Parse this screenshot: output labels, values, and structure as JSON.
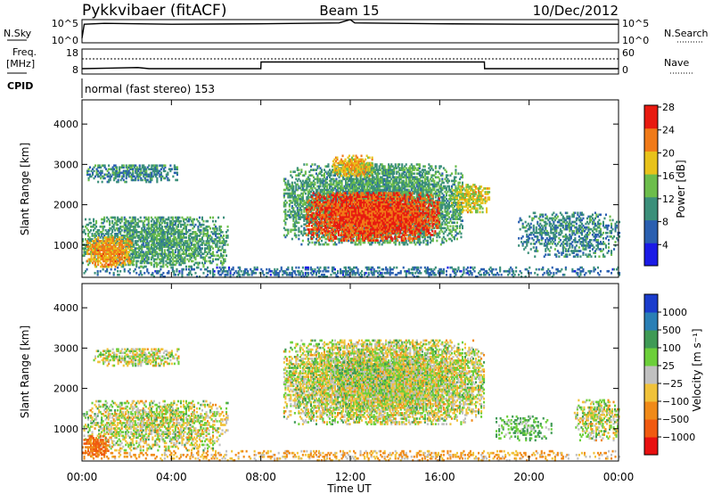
{
  "header": {
    "station": "Pykkvibaer (fitACF)",
    "beam": "Beam 15",
    "date": "10/Dec/2012"
  },
  "nsky_panel": {
    "label": "N.Sky",
    "right_label": "N.Search",
    "left_ticks": [
      "10^5",
      "10^0"
    ],
    "right_ticks": [
      "10^5",
      "10^0"
    ]
  },
  "freq_panel": {
    "label_line1": "Freq.",
    "label_line2": "[MHz]",
    "right_label": "Nave",
    "left_ticks": [
      "18",
      "8"
    ],
    "right_ticks": [
      "60",
      "0"
    ]
  },
  "cpid": {
    "label": "CPID",
    "text": "normal (fast stereo) 153"
  },
  "x_axis": {
    "label": "Time UT",
    "ticks": [
      "00:00",
      "04:00",
      "08:00",
      "12:00",
      "16:00",
      "20:00",
      "00:00"
    ]
  },
  "power_panel": {
    "ylabel": "Slant Range [km]",
    "yticks": [
      "1000",
      "2000",
      "3000",
      "4000"
    ],
    "colorbar_label": "Power [dB]",
    "colorbar_ticks": [
      "4",
      "8",
      "12",
      "16",
      "20",
      "24",
      "28"
    ],
    "colors": [
      "#1a1ae6",
      "#2a5fb0",
      "#3b8f7a",
      "#6cbd4b",
      "#e8c21a",
      "#f07a18",
      "#e81a10"
    ]
  },
  "velocity_panel": {
    "ylabel": "Slant Range [km]",
    "yticks": [
      "1000",
      "2000",
      "3000",
      "4000"
    ],
    "colorbar_label": "Velocity [m s⁻¹]",
    "colorbar_ticks": [
      "1000",
      "500",
      "100",
      "25",
      "−25",
      "−100",
      "−500",
      "−1000"
    ],
    "colors": [
      "#1a3ccc",
      "#2a7fb5",
      "#3f9a55",
      "#6ccf3a",
      "#c0c0c0",
      "#f0c23a",
      "#f08a18",
      "#f05a10",
      "#e81010"
    ]
  },
  "chart_data": [
    {
      "type": "line",
      "title": "N.Sky / N.Search",
      "x_unit": "hours UT",
      "series": [
        {
          "x": [
            0,
            0.1,
            1,
            4,
            8,
            11.5,
            12,
            12.2,
            16,
            20,
            24
          ],
          "y": [
            1.0,
            4.0,
            4.2,
            4.0,
            4.1,
            4.3,
            5.0,
            4.3,
            4.1,
            4.0,
            4.0
          ]
        }
      ]
    },
    {
      "type": "line",
      "title": "Freq. / Nave",
      "x_unit": "hours UT",
      "ylim": [
        8,
        18
      ],
      "series": [
        {
          "x": [
            0,
            2.5,
            3.0,
            8,
            8.01,
            18,
            18.01,
            24
          ],
          "y": [
            10.0,
            10.5,
            10.0,
            10.0,
            13.0,
            13.0,
            10.0,
            10.0
          ]
        }
      ]
    },
    {
      "type": "heatmap",
      "title": "Power",
      "x_unit": "hours UT",
      "y_unit": "km",
      "xlim": [
        0,
        24
      ],
      "ylim": [
        200,
        4600
      ],
      "colorbar_range": [
        0,
        30
      ],
      "blobs": [
        {
          "t0": 0.0,
          "t1": 24.0,
          "r0": 200,
          "r1": 450,
          "val": 8,
          "density": 0.35
        },
        {
          "t0": 0.2,
          "t1": 4.3,
          "r0": 2550,
          "r1": 3000,
          "val": 10,
          "density": 0.55
        },
        {
          "t0": 0.0,
          "t1": 6.5,
          "r0": 450,
          "r1": 1700,
          "val": 12,
          "density": 0.6
        },
        {
          "t0": 0.2,
          "t1": 2.2,
          "r0": 450,
          "r1": 1200,
          "val": 22,
          "density": 0.7
        },
        {
          "t0": 9.0,
          "t1": 17.0,
          "r0": 1000,
          "r1": 3000,
          "val": 12,
          "density": 0.75
        },
        {
          "t0": 10.0,
          "t1": 16.0,
          "r0": 1100,
          "r1": 2300,
          "val": 26,
          "density": 0.8
        },
        {
          "t0": 11.2,
          "t1": 13.0,
          "r0": 2700,
          "r1": 3200,
          "val": 20,
          "density": 0.7
        },
        {
          "t0": 16.5,
          "t1": 18.2,
          "r0": 1800,
          "r1": 2500,
          "val": 18,
          "density": 0.6
        },
        {
          "t0": 19.5,
          "t1": 24.0,
          "r0": 700,
          "r1": 1800,
          "val": 10,
          "density": 0.4
        }
      ]
    },
    {
      "type": "heatmap",
      "title": "Velocity",
      "x_unit": "hours UT",
      "y_unit": "m/s",
      "xlim": [
        0,
        24
      ],
      "ylim": [
        200,
        4600
      ],
      "colorbar_range": [
        -1000,
        1000
      ],
      "blobs": [
        {
          "t0": 0.0,
          "t1": 24.0,
          "r0": 200,
          "r1": 450,
          "val": -100,
          "density": 0.3
        },
        {
          "t0": 0.5,
          "t1": 4.3,
          "r0": 2550,
          "r1": 3000,
          "val": 0,
          "density": 0.55
        },
        {
          "t0": 0.0,
          "t1": 6.5,
          "r0": 450,
          "r1": 1700,
          "val": 0,
          "density": 0.5
        },
        {
          "t0": 0.0,
          "t1": 1.2,
          "r0": 300,
          "r1": 800,
          "val": -500,
          "density": 0.7
        },
        {
          "t0": 9.0,
          "t1": 18.0,
          "r0": 1100,
          "r1": 3200,
          "val": 0,
          "density": 0.8
        },
        {
          "t0": 11.0,
          "t1": 14.0,
          "r0": 2000,
          "r1": 2700,
          "val": 100,
          "density": 0.15
        },
        {
          "t0": 18.5,
          "t1": 21.0,
          "r0": 700,
          "r1": 1300,
          "val": 100,
          "density": 0.35
        },
        {
          "t0": 22.0,
          "t1": 24.0,
          "r0": 700,
          "r1": 1700,
          "val": 0,
          "density": 0.5
        }
      ]
    }
  ]
}
